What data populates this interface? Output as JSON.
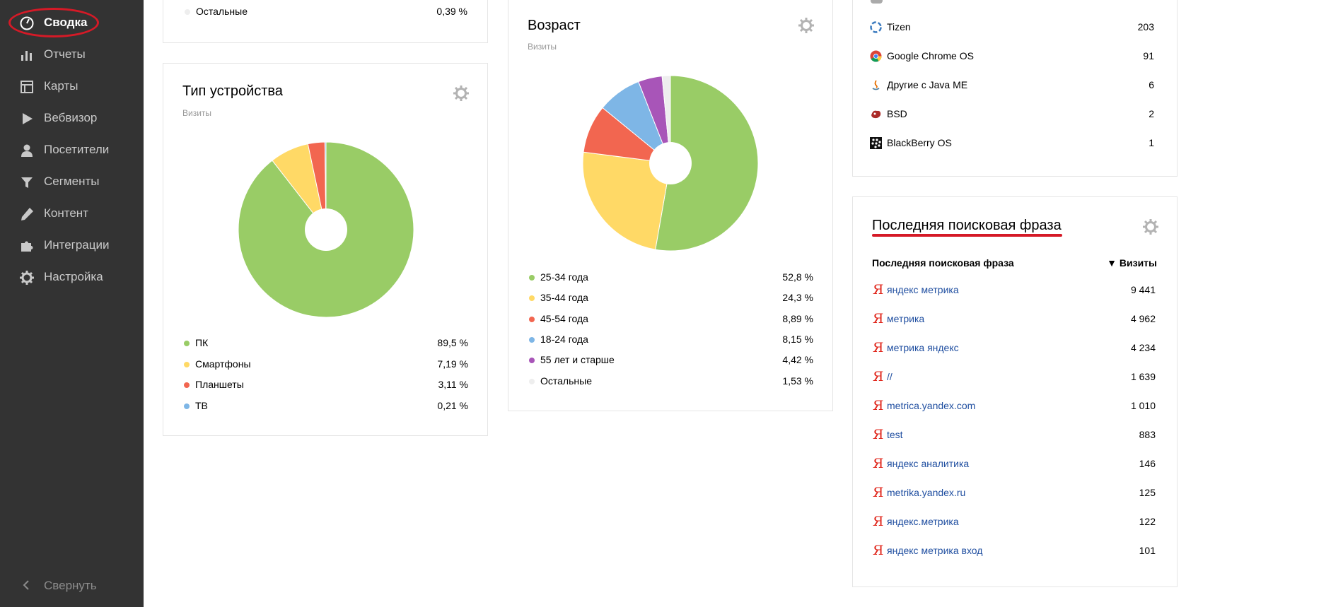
{
  "sidebar": {
    "items": [
      {
        "label": "Сводка",
        "icon": "dashboard-icon"
      },
      {
        "label": "Отчеты",
        "icon": "bar-chart-icon"
      },
      {
        "label": "Карты",
        "icon": "map-icon"
      },
      {
        "label": "Вебвизор",
        "icon": "play-icon"
      },
      {
        "label": "Посетители",
        "icon": "person-icon"
      },
      {
        "label": "Сегменты",
        "icon": "filter-icon"
      },
      {
        "label": "Контент",
        "icon": "pencil-icon"
      },
      {
        "label": "Интеграции",
        "icon": "puzzle-icon"
      },
      {
        "label": "Настройка",
        "icon": "gear-icon"
      }
    ],
    "collapse_label": "Свернуть"
  },
  "top_left_card": {
    "row": {
      "name": "Остальные",
      "value": "0,39 %"
    }
  },
  "device_card": {
    "title": "Тип устройства",
    "subtitle": "Визиты",
    "chart_data": {
      "type": "pie",
      "title": "Тип устройства",
      "categories": [
        "ПК",
        "Смартфоны",
        "Планшеты",
        "ТВ"
      ],
      "values": [
        89.5,
        7.19,
        3.11,
        0.21
      ],
      "colors": [
        "#99cc66",
        "#ffd966",
        "#f26650",
        "#7eb6e6"
      ]
    },
    "legend": [
      {
        "name": "ПК",
        "value": "89,5 %",
        "color": "#99cc66"
      },
      {
        "name": "Смартфоны",
        "value": "7,19 %",
        "color": "#ffd966"
      },
      {
        "name": "Планшеты",
        "value": "3,11 %",
        "color": "#f26650"
      },
      {
        "name": "ТВ",
        "value": "0,21 %",
        "color": "#7eb6e6"
      }
    ]
  },
  "age_card": {
    "title": "Возраст",
    "subtitle": "Визиты",
    "chart_data": {
      "type": "pie",
      "title": "Возраст",
      "categories": [
        "25-34 года",
        "35-44 года",
        "45-54 года",
        "18-24 года",
        "55 лет и старше",
        "Остальные"
      ],
      "values": [
        52.8,
        24.3,
        8.89,
        8.15,
        4.42,
        1.53
      ],
      "colors": [
        "#99cc66",
        "#ffd966",
        "#f26650",
        "#7eb6e6",
        "#a855b8",
        "#eeeeee"
      ]
    },
    "legend": [
      {
        "name": "25-34 года",
        "value": "52,8 %",
        "color": "#99cc66"
      },
      {
        "name": "35-44 года",
        "value": "24,3 %",
        "color": "#ffd966"
      },
      {
        "name": "45-54 года",
        "value": "8,89 %",
        "color": "#f26650"
      },
      {
        "name": "18-24 года",
        "value": "8,15 %",
        "color": "#7eb6e6"
      },
      {
        "name": "55 лет и старше",
        "value": "4,42 %",
        "color": "#a855b8"
      },
      {
        "name": "Остальные",
        "value": "1,53 %",
        "color": "#eeeeee"
      }
    ]
  },
  "os_card": {
    "rows": [
      {
        "name": "Tizen",
        "value": "203",
        "icon": "tizen-icon"
      },
      {
        "name": "Google Chrome OS",
        "value": "91",
        "icon": "chrome-icon"
      },
      {
        "name": "Другие с Java ME",
        "value": "6",
        "icon": "java-icon"
      },
      {
        "name": "BSD",
        "value": "2",
        "icon": "bsd-icon"
      },
      {
        "name": "BlackBerry OS",
        "value": "1",
        "icon": "blackberry-icon"
      }
    ]
  },
  "search_card": {
    "title": "Последняя поисковая фраза",
    "col_phrase": "Последняя поисковая фраза",
    "col_visits": "▼ Визиты",
    "yandex_glyph": "Я",
    "rows": [
      {
        "phrase": "яндекс метрика",
        "visits": "9 441"
      },
      {
        "phrase": "метрика",
        "visits": "4 962"
      },
      {
        "phrase": "метрика яндекс",
        "visits": "4 234"
      },
      {
        "phrase": "//",
        "visits": "1 639"
      },
      {
        "phrase": "metrica.yandex.com",
        "visits": "1 010"
      },
      {
        "phrase": "test",
        "visits": "883"
      },
      {
        "phrase": "яндекс аналитика",
        "visits": "146"
      },
      {
        "phrase": "metrika.yandex.ru",
        "visits": "125"
      },
      {
        "phrase": "яндекс.метрика",
        "visits": "122"
      },
      {
        "phrase": "яндекс метрика вход",
        "visits": "101"
      }
    ]
  }
}
